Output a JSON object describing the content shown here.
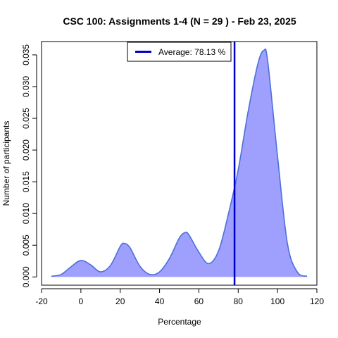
{
  "chart_data": {
    "type": "area",
    "title": "CSC 100: Assignments 1-4 (N = 29 ) - Feb 23, 2025",
    "xlabel": "Percentage",
    "ylabel": "Number of participants",
    "xlim": [
      -20,
      120
    ],
    "ylim": [
      0,
      0.035
    ],
    "xticks": [
      -20,
      0,
      20,
      40,
      60,
      80,
      100,
      120
    ],
    "yticks": [
      0.0,
      0.005,
      0.01,
      0.015,
      0.02,
      0.025,
      0.03,
      0.035
    ],
    "ytick_labels": [
      "0.000",
      "0.005",
      "0.010",
      "0.015",
      "0.020",
      "0.025",
      "0.030",
      "0.035"
    ],
    "grid": false,
    "legend_position": "top",
    "fill_color": "#9f9ffe",
    "line_color": "#4b70d9",
    "average_line_color": "#0000cc",
    "series": [
      {
        "x": [
          -15,
          -10,
          -5,
          0,
          5,
          10,
          15,
          20,
          22,
          25,
          30,
          35,
          40,
          45,
          50,
          53,
          55,
          60,
          65,
          70,
          75,
          80,
          85,
          90,
          93,
          95,
          100,
          105,
          110,
          115
        ],
        "y": [
          0.0001,
          0.0004,
          0.0016,
          0.0026,
          0.0019,
          0.0008,
          0.0018,
          0.0048,
          0.0053,
          0.0046,
          0.0017,
          0.0004,
          0.0008,
          0.0029,
          0.0061,
          0.007,
          0.0066,
          0.0039,
          0.0021,
          0.0041,
          0.0099,
          0.0169,
          0.026,
          0.0336,
          0.0357,
          0.034,
          0.019,
          0.0053,
          0.0008,
          0.0001
        ]
      }
    ],
    "average": {
      "value": 78.13,
      "label": "Average: 78.13 %"
    }
  }
}
